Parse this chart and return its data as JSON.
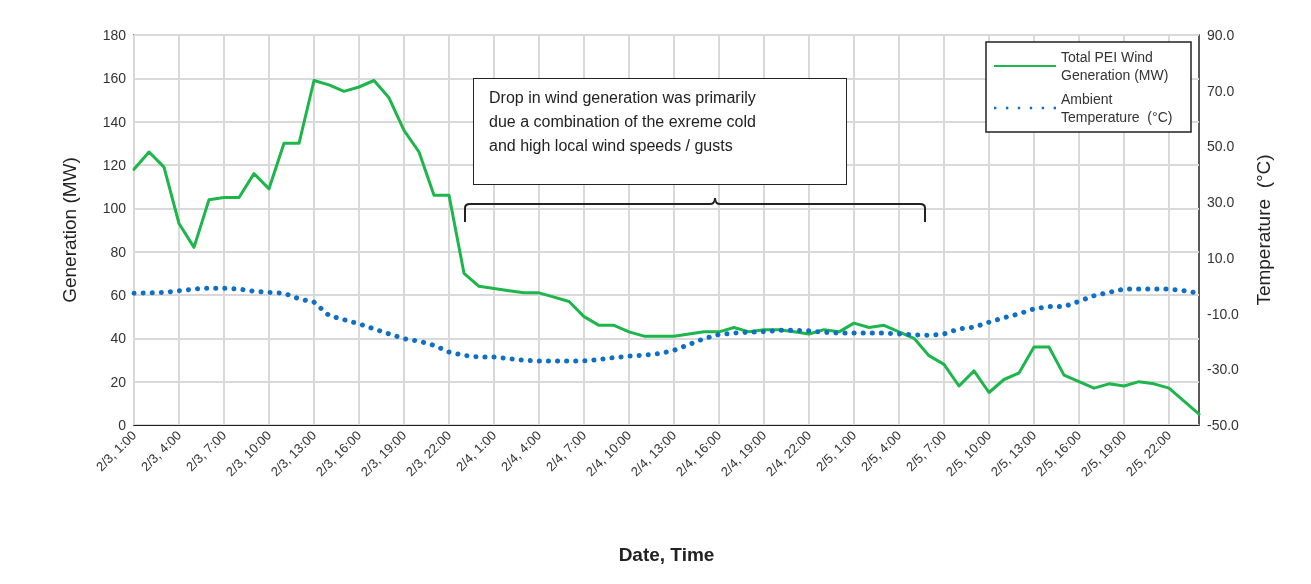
{
  "chart_data": {
    "type": "line",
    "xlabel": "Date, Time",
    "ylabel": "Generation (MW)",
    "y2label": "Temperature  (°C)",
    "categories": [
      "2/3, 1:00",
      null,
      null,
      "2/3, 4:00",
      null,
      null,
      "2/3, 7:00",
      null,
      null,
      "2/3, 10:00",
      null,
      null,
      "2/3, 13:00",
      null,
      null,
      "2/3, 16:00",
      null,
      null,
      "2/3, 19:00",
      null,
      null,
      "2/3, 22:00",
      null,
      null,
      "2/4, 1:00",
      null,
      null,
      "2/4, 4:00",
      null,
      null,
      "2/4, 7:00",
      null,
      null,
      "2/4, 10:00",
      null,
      null,
      "2/4, 13:00",
      null,
      null,
      "2/4, 16:00",
      null,
      null,
      "2/4, 19:00",
      null,
      null,
      "2/4, 22:00",
      null,
      null,
      "2/5, 1:00",
      null,
      null,
      "2/5, 4:00",
      null,
      null,
      "2/5, 7:00",
      null,
      null,
      "2/5, 10:00",
      null,
      null,
      "2/5, 13:00",
      null,
      null,
      "2/5, 16:00",
      null,
      null,
      "2/5, 19:00",
      null,
      null,
      "2/5, 22:00",
      null,
      null
    ],
    "series": [
      {
        "name": "Total PEI Wind Generation (MW)",
        "color": "#1db64b",
        "line_style": "solid",
        "values": [
          118,
          126,
          119,
          93,
          82,
          104,
          105,
          105,
          116,
          109,
          130,
          130,
          159,
          157,
          154,
          156,
          159,
          151,
          136,
          126,
          106,
          106,
          70,
          64,
          63,
          62,
          61,
          61,
          59,
          57,
          50,
          46,
          46,
          43,
          41,
          41,
          41,
          42,
          43,
          43,
          45,
          43,
          44,
          44,
          43,
          42,
          44,
          43,
          47,
          45,
          46,
          43,
          40,
          32,
          28,
          18,
          25,
          15,
          21,
          24,
          36,
          36,
          23,
          20,
          17,
          19,
          18,
          20,
          19,
          17,
          11,
          5
        ]
      },
      {
        "name": "Ambient Temperature  (°C)",
        "color": "#0f6fc6",
        "line_style": "dotted",
        "axis": "y2",
        "values": [
          -2.7,
          -2.6,
          -2.4,
          -1.8,
          -1.2,
          -0.9,
          -0.9,
          -1.2,
          -2,
          -2.4,
          -2.7,
          -4.7,
          -5.9,
          -10.7,
          -12.2,
          -13.7,
          -15.5,
          -17.3,
          -19,
          -19.9,
          -21.4,
          -23.8,
          -25,
          -25.6,
          -25.6,
          -26.2,
          -26.8,
          -27,
          -27,
          -27,
          -27,
          -26.5,
          -25.8,
          -25.3,
          -24.9,
          -24.4,
          -23.2,
          -21.1,
          -19,
          -17.5,
          -17,
          -16.7,
          -16.5,
          -16,
          -16,
          -16.2,
          -16.7,
          -17,
          -17,
          -17,
          -17,
          -17.3,
          -17.6,
          -17.8,
          -17.3,
          -15.5,
          -14.9,
          -13.1,
          -11.5,
          -10.1,
          -8.3,
          -7.5,
          -7.5,
          -5.6,
          -3.6,
          -2.4,
          -1.2,
          -1.2,
          -1.2,
          -1.2,
          -1.8,
          -2.7
        ]
      }
    ],
    "ylim": [
      0,
      180
    ],
    "yticks": [
      0,
      20,
      40,
      60,
      80,
      100,
      120,
      140,
      160,
      180
    ],
    "y2lim": [
      -50,
      90
    ],
    "y2ticks": [
      {
        "value": -50,
        "label": "-50.0"
      },
      {
        "value": -30,
        "label": "-30.0"
      },
      {
        "value": -10,
        "label": "-10.0"
      },
      {
        "value": 10,
        "label": "10.0"
      },
      {
        "value": 30,
        "label": "30.0"
      },
      {
        "value": 50,
        "label": "50.0"
      },
      {
        "value": 70,
        "label": "70.0"
      },
      {
        "value": 90,
        "label": "90.0"
      }
    ],
    "grid": true,
    "legend": "top right",
    "marker": "none",
    "annotations": [
      "Drop in wind generation was primarily due a combination of the exreme cold and high local wind speeds / gusts"
    ]
  }
}
